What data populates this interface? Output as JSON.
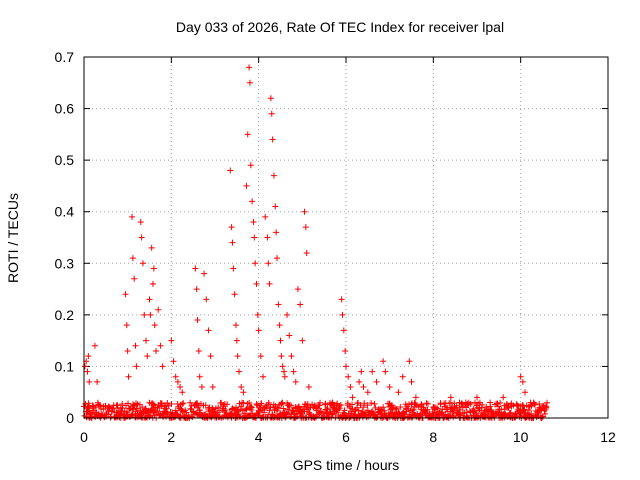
{
  "chart_data": {
    "type": "scatter",
    "title": "Day 033 of 2026, Rate Of TEC Index for receiver lpal",
    "xlabel": "GPS time / hours",
    "ylabel": "ROTI / TECUs",
    "xlim": [
      0,
      12
    ],
    "ylim": [
      0,
      0.7
    ],
    "x_ticks": [
      0,
      2,
      4,
      6,
      8,
      10,
      12
    ],
    "y_ticks": [
      0,
      0.1,
      0.2,
      0.3,
      0.4,
      0.5,
      0.6,
      0.7
    ],
    "x_tick_labels": [
      "0",
      "2",
      "4",
      "6",
      "8",
      "10",
      "12"
    ],
    "y_tick_labels": [
      "0",
      "0.1",
      "0.2",
      "0.3",
      "0.4",
      "0.5",
      "0.6",
      "0.7"
    ],
    "grid": true,
    "marker": "+",
    "color": "#ff0000",
    "series": [
      {
        "name": "ROTI",
        "points": [
          [
            0.02,
            0.1
          ],
          [
            0.05,
            0.11
          ],
          [
            0.08,
            0.09
          ],
          [
            0.1,
            0.12
          ],
          [
            0.12,
            0.07
          ],
          [
            0.25,
            0.14
          ],
          [
            0.3,
            0.07
          ],
          [
            0.95,
            0.24
          ],
          [
            0.98,
            0.18
          ],
          [
            1.0,
            0.13
          ],
          [
            1.02,
            0.08
          ],
          [
            1.1,
            0.39
          ],
          [
            1.12,
            0.31
          ],
          [
            1.15,
            0.27
          ],
          [
            1.18,
            0.14
          ],
          [
            1.2,
            0.1
          ],
          [
            1.3,
            0.38
          ],
          [
            1.32,
            0.35
          ],
          [
            1.35,
            0.3
          ],
          [
            1.38,
            0.2
          ],
          [
            1.42,
            0.15
          ],
          [
            1.45,
            0.12
          ],
          [
            1.5,
            0.23
          ],
          [
            1.52,
            0.2
          ],
          [
            1.55,
            0.33
          ],
          [
            1.58,
            0.26
          ],
          [
            1.6,
            0.29
          ],
          [
            1.62,
            0.18
          ],
          [
            1.65,
            0.13
          ],
          [
            1.7,
            0.21
          ],
          [
            1.75,
            0.14
          ],
          [
            1.8,
            0.1
          ],
          [
            2.0,
            0.15
          ],
          [
            2.05,
            0.11
          ],
          [
            2.1,
            0.08
          ],
          [
            2.15,
            0.07
          ],
          [
            2.2,
            0.06
          ],
          [
            2.25,
            0.05
          ],
          [
            2.55,
            0.29
          ],
          [
            2.58,
            0.25
          ],
          [
            2.6,
            0.19
          ],
          [
            2.63,
            0.13
          ],
          [
            2.65,
            0.08
          ],
          [
            2.7,
            0.06
          ],
          [
            2.75,
            0.28
          ],
          [
            2.8,
            0.23
          ],
          [
            2.85,
            0.17
          ],
          [
            2.9,
            0.12
          ],
          [
            2.95,
            0.06
          ],
          [
            3.35,
            0.48
          ],
          [
            3.38,
            0.37
          ],
          [
            3.4,
            0.34
          ],
          [
            3.42,
            0.29
          ],
          [
            3.45,
            0.24
          ],
          [
            3.48,
            0.18
          ],
          [
            3.5,
            0.15
          ],
          [
            3.52,
            0.12
          ],
          [
            3.55,
            0.09
          ],
          [
            3.6,
            0.06
          ],
          [
            3.65,
            0.05
          ],
          [
            3.72,
            0.45
          ],
          [
            3.75,
            0.55
          ],
          [
            3.78,
            0.68
          ],
          [
            3.8,
            0.65
          ],
          [
            3.82,
            0.49
          ],
          [
            3.85,
            0.42
          ],
          [
            3.88,
            0.38
          ],
          [
            3.9,
            0.35
          ],
          [
            3.92,
            0.3
          ],
          [
            3.95,
            0.26
          ],
          [
            3.98,
            0.2
          ],
          [
            4.0,
            0.17
          ],
          [
            4.05,
            0.12
          ],
          [
            4.1,
            0.08
          ],
          [
            4.15,
            0.39
          ],
          [
            4.2,
            0.35
          ],
          [
            4.22,
            0.3
          ],
          [
            4.25,
            0.26
          ],
          [
            4.28,
            0.62
          ],
          [
            4.3,
            0.59
          ],
          [
            4.32,
            0.54
          ],
          [
            4.35,
            0.47
          ],
          [
            4.38,
            0.41
          ],
          [
            4.4,
            0.36
          ],
          [
            4.42,
            0.31
          ],
          [
            4.45,
            0.22
          ],
          [
            4.48,
            0.18
          ],
          [
            4.5,
            0.15
          ],
          [
            4.52,
            0.12
          ],
          [
            4.55,
            0.1
          ],
          [
            4.58,
            0.09
          ],
          [
            4.6,
            0.08
          ],
          [
            4.65,
            0.2
          ],
          [
            4.7,
            0.16
          ],
          [
            4.75,
            0.12
          ],
          [
            4.8,
            0.09
          ],
          [
            4.85,
            0.07
          ],
          [
            4.9,
            0.25
          ],
          [
            4.95,
            0.22
          ],
          [
            5.0,
            0.15
          ],
          [
            5.05,
            0.4
          ],
          [
            5.08,
            0.37
          ],
          [
            5.1,
            0.32
          ],
          [
            5.15,
            0.06
          ],
          [
            5.9,
            0.23
          ],
          [
            5.92,
            0.2
          ],
          [
            5.95,
            0.17
          ],
          [
            5.98,
            0.13
          ],
          [
            6.0,
            0.1
          ],
          [
            6.05,
            0.08
          ],
          [
            6.1,
            0.06
          ],
          [
            6.15,
            0.04
          ],
          [
            6.3,
            0.07
          ],
          [
            6.35,
            0.09
          ],
          [
            6.4,
            0.06
          ],
          [
            6.5,
            0.05
          ],
          [
            6.6,
            0.09
          ],
          [
            6.7,
            0.07
          ],
          [
            6.85,
            0.11
          ],
          [
            6.9,
            0.09
          ],
          [
            7.0,
            0.06
          ],
          [
            7.2,
            0.05
          ],
          [
            7.3,
            0.08
          ],
          [
            7.45,
            0.11
          ],
          [
            7.5,
            0.07
          ],
          [
            7.6,
            0.04
          ],
          [
            8.4,
            0.04
          ],
          [
            8.6,
            0.03
          ],
          [
            9.0,
            0.04
          ],
          [
            9.3,
            0.03
          ],
          [
            9.6,
            0.04
          ],
          [
            10.0,
            0.08
          ],
          [
            10.05,
            0.07
          ],
          [
            10.1,
            0.05
          ],
          [
            10.3,
            0.03
          ],
          [
            10.5,
            0.02
          ]
        ]
      }
    ],
    "noise_floor": {
      "x_range": [
        0,
        10.6
      ],
      "typical_max": 0.03,
      "description": "dense band of low ROTI values"
    }
  }
}
